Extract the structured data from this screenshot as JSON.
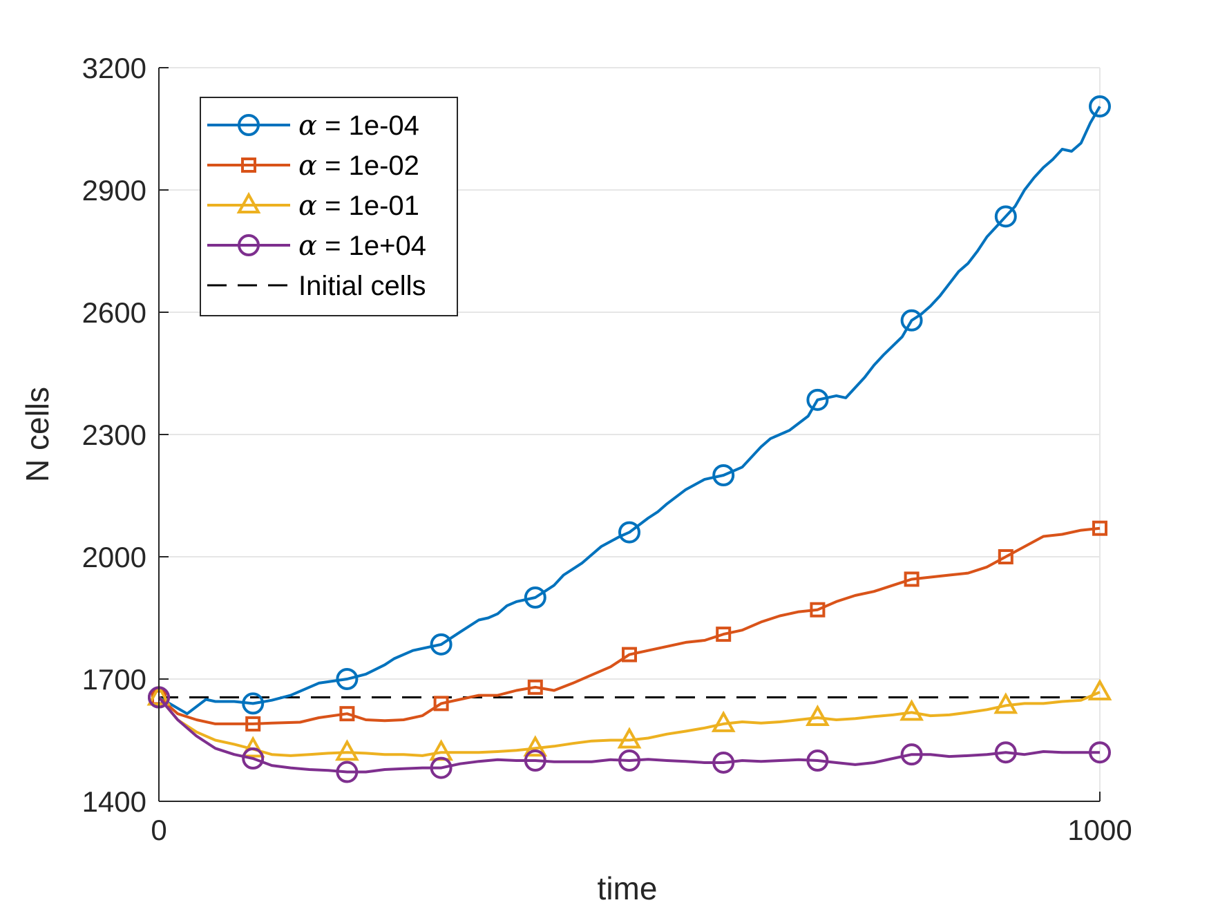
{
  "chart_data": {
    "type": "line",
    "xlabel": "time",
    "ylabel": "N cells",
    "xlim": [
      0,
      1000
    ],
    "ylim": [
      1400,
      3200
    ],
    "xticks": [
      "0",
      "1000"
    ],
    "yticks": [
      "1400",
      "1700",
      "2000",
      "2300",
      "2600",
      "2900",
      "3200"
    ],
    "grid": true,
    "legend_position": "top-left",
    "series": [
      {
        "name": "α = 1e-04",
        "alpha_symbol": "α",
        "alpha_value": " = 1e-04",
        "color": "#0072BD",
        "marker": "circle",
        "markers_x": [
          0,
          100,
          200,
          300,
          400,
          500,
          600,
          700,
          800,
          900,
          1000
        ],
        "x": [
          0,
          30,
          50,
          60,
          80,
          100,
          120,
          140,
          150,
          170,
          200,
          220,
          240,
          250,
          270,
          300,
          320,
          340,
          350,
          360,
          370,
          380,
          400,
          410,
          420,
          430,
          440,
          450,
          460,
          470,
          490,
          500,
          520,
          530,
          540,
          560,
          580,
          600,
          620,
          640,
          650,
          660,
          670,
          690,
          700,
          720,
          730,
          740,
          750,
          760,
          770,
          790,
          800,
          810,
          820,
          830,
          840,
          850,
          860,
          870,
          880,
          890,
          900,
          910,
          920,
          930,
          940,
          950,
          960,
          970,
          980,
          990,
          1000
        ],
        "y": [
          1655,
          1615,
          1650,
          1645,
          1645,
          1640,
          1648,
          1660,
          1670,
          1690,
          1700,
          1712,
          1735,
          1750,
          1770,
          1785,
          1815,
          1845,
          1850,
          1860,
          1880,
          1890,
          1900,
          1915,
          1930,
          1955,
          1970,
          1985,
          2005,
          2025,
          2050,
          2060,
          2095,
          2110,
          2130,
          2165,
          2190,
          2200,
          2220,
          2270,
          2290,
          2300,
          2310,
          2345,
          2385,
          2395,
          2390,
          2415,
          2440,
          2470,
          2495,
          2540,
          2580,
          2595,
          2615,
          2640,
          2670,
          2700,
          2720,
          2750,
          2785,
          2810,
          2835,
          2860,
          2900,
          2930,
          2955,
          2975,
          3000,
          2995,
          3015,
          3065,
          3105
        ]
      },
      {
        "name": "α = 1e-02",
        "alpha_symbol": "α",
        "alpha_value": " = 1e-02",
        "color": "#D95319",
        "marker": "square",
        "markers_x": [
          0,
          100,
          200,
          300,
          400,
          500,
          600,
          700,
          800,
          900,
          1000
        ],
        "x": [
          0,
          20,
          40,
          60,
          80,
          100,
          120,
          150,
          170,
          200,
          220,
          240,
          260,
          280,
          300,
          320,
          340,
          360,
          380,
          400,
          420,
          440,
          460,
          480,
          500,
          520,
          540,
          560,
          580,
          600,
          620,
          640,
          660,
          680,
          700,
          720,
          740,
          760,
          780,
          800,
          820,
          840,
          860,
          880,
          900,
          920,
          940,
          960,
          980,
          1000
        ],
        "y": [
          1655,
          1615,
          1600,
          1590,
          1590,
          1590,
          1592,
          1594,
          1605,
          1615,
          1600,
          1598,
          1600,
          1610,
          1640,
          1650,
          1660,
          1660,
          1672,
          1680,
          1672,
          1690,
          1710,
          1730,
          1760,
          1770,
          1780,
          1790,
          1795,
          1810,
          1820,
          1840,
          1855,
          1865,
          1870,
          1890,
          1905,
          1915,
          1930,
          1945,
          1950,
          1955,
          1960,
          1975,
          2000,
          2025,
          2050,
          2055,
          2065,
          2070
        ]
      },
      {
        "name": "α = 1e-01",
        "alpha_symbol": "α",
        "alpha_value": " = 1e-01",
        "color": "#EDB120",
        "marker": "triangle",
        "markers_x": [
          0,
          100,
          200,
          300,
          400,
          500,
          600,
          700,
          800,
          900,
          1000
        ],
        "x": [
          0,
          20,
          40,
          60,
          80,
          100,
          120,
          140,
          160,
          180,
          200,
          220,
          240,
          260,
          280,
          300,
          320,
          340,
          360,
          380,
          400,
          420,
          440,
          460,
          480,
          500,
          520,
          540,
          560,
          580,
          600,
          620,
          640,
          660,
          680,
          700,
          720,
          740,
          760,
          780,
          800,
          820,
          840,
          860,
          880,
          900,
          920,
          940,
          960,
          980,
          1000
        ],
        "y": [
          1655,
          1600,
          1570,
          1550,
          1540,
          1528,
          1515,
          1512,
          1515,
          1518,
          1520,
          1518,
          1515,
          1515,
          1512,
          1520,
          1520,
          1520,
          1522,
          1525,
          1530,
          1535,
          1542,
          1548,
          1550,
          1550,
          1555,
          1565,
          1572,
          1580,
          1590,
          1595,
          1592,
          1595,
          1600,
          1605,
          1600,
          1603,
          1608,
          1612,
          1618,
          1610,
          1612,
          1618,
          1625,
          1635,
          1640,
          1640,
          1645,
          1648,
          1668
        ]
      },
      {
        "name": "α = 1e+04",
        "alpha_symbol": "α",
        "alpha_value": " = 1e+04",
        "color": "#7E2F8E",
        "marker": "circle",
        "markers_x": [
          0,
          100,
          200,
          300,
          400,
          500,
          600,
          700,
          800,
          900,
          1000
        ],
        "x": [
          0,
          20,
          40,
          60,
          80,
          100,
          120,
          140,
          160,
          180,
          200,
          220,
          240,
          260,
          280,
          300,
          320,
          340,
          360,
          380,
          400,
          420,
          440,
          460,
          480,
          500,
          520,
          540,
          560,
          580,
          600,
          620,
          640,
          660,
          680,
          700,
          720,
          740,
          760,
          780,
          800,
          820,
          840,
          860,
          880,
          900,
          920,
          940,
          960,
          980,
          1000
        ],
        "y": [
          1655,
          1600,
          1560,
          1530,
          1515,
          1505,
          1488,
          1482,
          1478,
          1476,
          1472,
          1472,
          1478,
          1480,
          1482,
          1482,
          1492,
          1498,
          1502,
          1500,
          1500,
          1497,
          1497,
          1497,
          1502,
          1500,
          1503,
          1500,
          1498,
          1495,
          1495,
          1500,
          1498,
          1500,
          1502,
          1500,
          1495,
          1490,
          1495,
          1505,
          1515,
          1515,
          1510,
          1512,
          1515,
          1520,
          1515,
          1522,
          1520,
          1520,
          1520
        ]
      },
      {
        "name": "Initial cells",
        "color": "#000000",
        "marker": "none",
        "dashed": true,
        "x": [
          0,
          1000
        ],
        "y": [
          1655,
          1655
        ]
      }
    ]
  }
}
